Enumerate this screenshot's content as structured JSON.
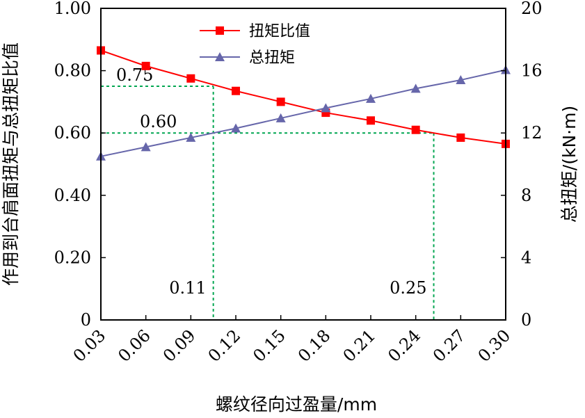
{
  "chart_data": {
    "type": "line",
    "x": [
      0.03,
      0.06,
      0.09,
      0.12,
      0.15,
      0.18,
      0.21,
      0.24,
      0.27,
      0.3
    ],
    "x_tick_labels": [
      "0.03",
      "0.06",
      "0.09",
      "0.12",
      "0.15",
      "0.18",
      "0.21",
      "0.24",
      "0.27",
      "0.30"
    ],
    "xlabel": "螺纹径向过盈量/mm",
    "ylabel_left": "作用到台肩面扭矩与总扭矩比值",
    "ylabel_right": "总扭矩/(kN·m)",
    "ylim_left": [
      0,
      1.0
    ],
    "ylim_right": [
      0,
      20
    ],
    "y_left_tick_labels": [
      "0",
      "0.20",
      "0.40",
      "0.60",
      "0.80",
      "1.00"
    ],
    "y_right_tick_labels": [
      "0",
      "4",
      "8",
      "12",
      "16",
      "20"
    ],
    "series": [
      {
        "name": "扭矩比值",
        "axis": "left",
        "color": "#ff0000",
        "marker": "square",
        "values": [
          0.865,
          0.815,
          0.775,
          0.735,
          0.7,
          0.665,
          0.64,
          0.61,
          0.585,
          0.565
        ]
      },
      {
        "name": "总扭矩",
        "axis": "right",
        "color": "#6666aa",
        "marker": "triangle",
        "values": [
          10.5,
          11.1,
          11.7,
          12.3,
          12.95,
          13.6,
          14.2,
          14.85,
          15.4,
          16.05
        ]
      }
    ],
    "annotations": [
      {
        "text": "0.75",
        "kind": "y",
        "value": 0.75,
        "x_end": 0.105,
        "color": "#00a651"
      },
      {
        "text": "0.60",
        "kind": "y",
        "value": 0.6,
        "x_end": 0.252,
        "color": "#00a651"
      },
      {
        "text": "0.11",
        "kind": "x",
        "value": 0.105,
        "y_end": 0.75,
        "color": "#00a651"
      },
      {
        "text": "0.25",
        "kind": "x",
        "value": 0.252,
        "y_end": 0.6,
        "color": "#00a651"
      }
    ],
    "grid": false,
    "legend_position": "top-center"
  }
}
